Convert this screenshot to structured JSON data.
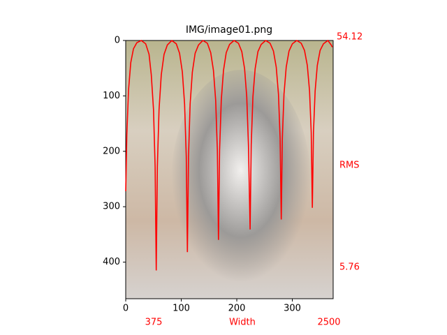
{
  "chart_data": {
    "type": "line",
    "title": "IMG/image01.png",
    "series": [
      {
        "color": "#ff0000",
        "x": [
          0,
          2,
          5,
          9,
          14,
          20,
          28,
          36,
          42,
          46,
          50,
          53,
          55,
          57,
          60,
          64,
          69,
          75,
          83,
          91,
          97,
          102,
          106,
          109,
          111,
          113,
          116,
          120,
          125,
          131,
          139,
          147,
          153,
          158,
          162,
          165,
          167,
          169,
          172,
          176,
          181,
          187,
          195,
          203,
          209,
          214,
          218,
          221,
          224,
          226,
          229,
          233,
          238,
          244,
          252,
          260,
          266,
          271,
          275,
          278,
          280,
          282,
          285,
          289,
          294,
          300,
          308,
          316,
          322,
          327,
          331,
          334,
          336,
          338,
          341,
          345,
          350,
          356,
          364,
          370,
          372
        ],
        "values": [
          272,
          170,
          90,
          40,
          15,
          4,
          0,
          6,
          25,
          62,
          125,
          228,
          415,
          228,
          125,
          62,
          25,
          8,
          0,
          6,
          23,
          57,
          115,
          210,
          382,
          210,
          115,
          57,
          23,
          8,
          0,
          5,
          22,
          54,
          108,
          198,
          360,
          198,
          108,
          54,
          22,
          7,
          0,
          5,
          20,
          51,
          102,
          188,
          341,
          188,
          102,
          51,
          20,
          7,
          0,
          5,
          19,
          48,
          97,
          178,
          323,
          178,
          97,
          48,
          19,
          6,
          0,
          5,
          18,
          45,
          91,
          166,
          302,
          166,
          91,
          45,
          18,
          6,
          0,
          8,
          12
        ]
      }
    ],
    "xlim": [
      0,
      373.5
    ],
    "ylim": [
      466,
      0
    ],
    "xticks": [
      0,
      100,
      200,
      300
    ],
    "yticks": [
      0,
      100,
      200,
      300,
      400
    ],
    "annotations": [
      {
        "text": "54.12",
        "color": "#ff0000"
      },
      {
        "text": "RMS",
        "color": "#ff0000"
      },
      {
        "text": "5.76",
        "color": "#ff0000"
      },
      {
        "text": "375",
        "color": "#ff0000"
      },
      {
        "text": "Width",
        "color": "#ff0000"
      },
      {
        "text": "2500",
        "color": "#ff0000"
      }
    ]
  }
}
